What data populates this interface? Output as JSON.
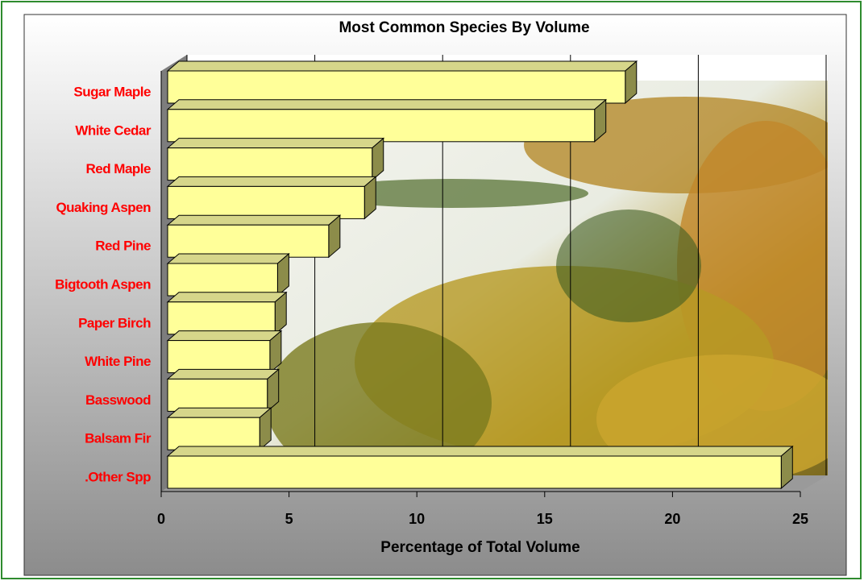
{
  "chart_data": {
    "type": "bar",
    "orientation": "horizontal",
    "title": "Most Common Species By Volume",
    "x_label": "Percentage of Total Volume",
    "categories": [
      "Sugar Maple",
      "White Cedar",
      "Red Maple",
      "Quaking Aspen",
      "Red Pine",
      "Bigtooth Aspen",
      "Paper Birch",
      "White Pine",
      "Basswood",
      "Balsam Fir",
      ".Other Spp"
    ],
    "values": [
      17.9,
      16.7,
      8.0,
      7.7,
      6.3,
      4.3,
      4.2,
      4.0,
      3.9,
      3.6,
      24.0
    ],
    "color": "#ffff99",
    "label_color": "#ff0000",
    "xlim": [
      0,
      25
    ],
    "xticks": [
      0,
      5,
      10,
      15,
      20,
      25
    ],
    "grid": true
  }
}
